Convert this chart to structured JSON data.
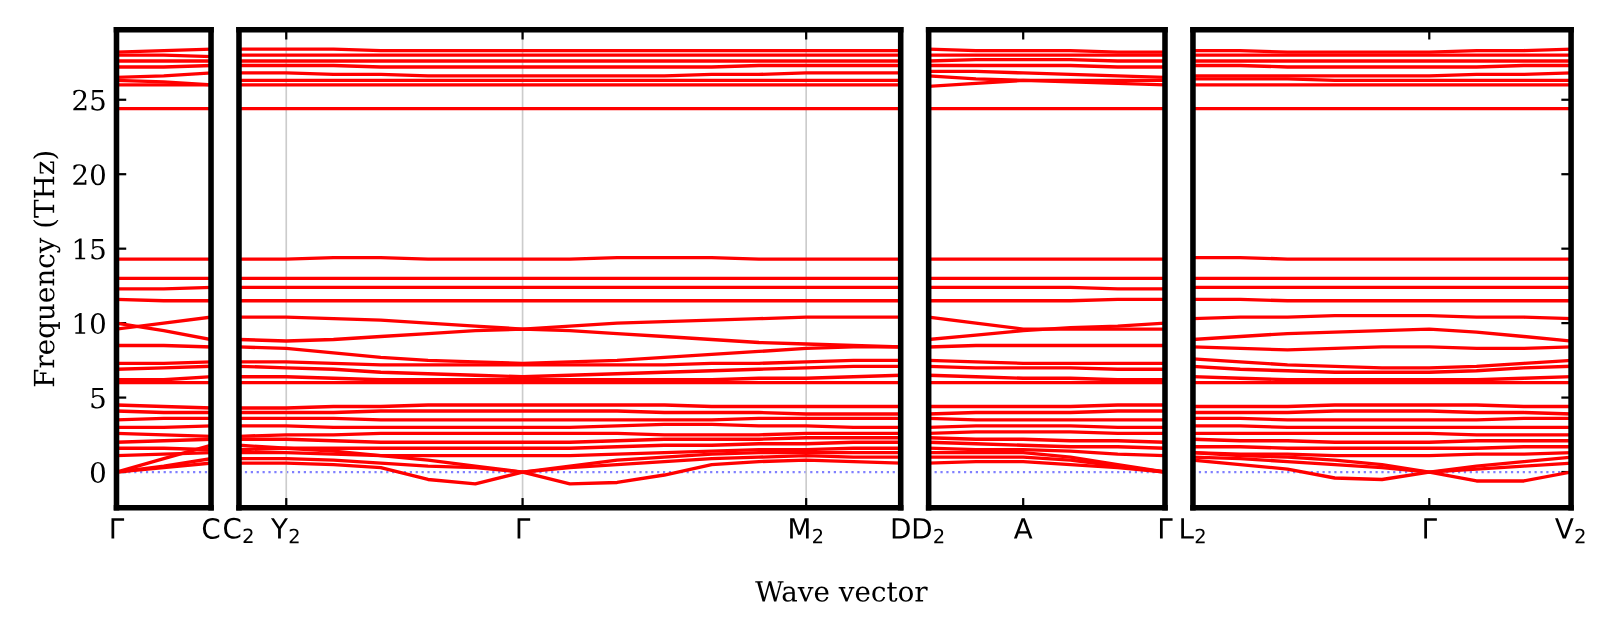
{
  "chart_data": [
    {
      "type": "line",
      "ylabel": "Frequency (THz)",
      "categories": [
        "Γ",
        null,
        "C"
      ],
      "ylim": [
        -2.4,
        29.7
      ],
      "yticks": [
        0,
        5,
        10,
        15,
        20,
        25
      ],
      "marker": "none",
      "line_style": "solid",
      "legend": false,
      "ref_lines": [
        {
          "axis": "y",
          "value": 0,
          "label": null,
          "color": "#8080ff",
          "line_style": "dotted"
        }
      ],
      "series": [
        {
          "color": "#ff0000",
          "values": [
            24.4,
            24.4,
            24.4
          ]
        },
        {
          "color": "#ff0000",
          "values": [
            26.0,
            26.0,
            26.0
          ]
        },
        {
          "color": "#ff0000",
          "values": [
            26.3,
            26.2,
            26.0
          ]
        },
        {
          "color": "#ff0000",
          "values": [
            26.5,
            26.6,
            26.8
          ]
        },
        {
          "color": "#ff0000",
          "values": [
            27.2,
            27.2,
            27.3
          ]
        },
        {
          "color": "#ff0000",
          "values": [
            27.6,
            27.6,
            27.6
          ]
        },
        {
          "color": "#ff0000",
          "values": [
            28.0,
            28.0,
            27.9
          ]
        },
        {
          "color": "#ff0000",
          "values": [
            28.2,
            28.3,
            28.4
          ]
        },
        {
          "color": "#ff0000",
          "values": [
            14.3,
            14.3,
            14.3
          ]
        },
        {
          "color": "#ff0000",
          "values": [
            13.0,
            13.0,
            13.0
          ]
        },
        {
          "color": "#ff0000",
          "values": [
            12.3,
            12.3,
            12.4
          ]
        },
        {
          "color": "#ff0000",
          "values": [
            11.6,
            11.5,
            11.5
          ]
        },
        {
          "color": "#ff0000",
          "values": [
            9.6,
            10.0,
            10.4
          ]
        },
        {
          "color": "#ff0000",
          "values": [
            10.0,
            9.5,
            8.9
          ]
        },
        {
          "color": "#ff0000",
          "values": [
            8.5,
            8.5,
            8.4
          ]
        },
        {
          "color": "#ff0000",
          "values": [
            7.3,
            7.3,
            7.4
          ]
        },
        {
          "color": "#ff0000",
          "values": [
            6.9,
            7.0,
            7.1
          ]
        },
        {
          "color": "#ff0000",
          "values": [
            6.2,
            6.2,
            6.4
          ]
        },
        {
          "color": "#ff0000",
          "values": [
            6.0,
            6.0,
            6.0
          ]
        },
        {
          "color": "#ff0000",
          "values": [
            4.5,
            4.4,
            4.3
          ]
        },
        {
          "color": "#ff0000",
          "values": [
            4.1,
            4.0,
            4.0
          ]
        },
        {
          "color": "#ff0000",
          "values": [
            3.5,
            3.6,
            3.6
          ]
        },
        {
          "color": "#ff0000",
          "values": [
            3.0,
            3.0,
            3.1
          ]
        },
        {
          "color": "#ff0000",
          "values": [
            2.6,
            2.5,
            2.4
          ]
        },
        {
          "color": "#ff0000",
          "values": [
            2.0,
            2.1,
            2.2
          ]
        },
        {
          "color": "#ff0000",
          "values": [
            1.6,
            1.6,
            1.5
          ]
        },
        {
          "color": "#ff0000",
          "values": [
            1.1,
            1.2,
            1.3
          ]
        },
        {
          "color": "#ff0000",
          "values": [
            0,
            0.9,
            1.8
          ]
        },
        {
          "color": "#ff0000",
          "values": [
            0,
            0.4,
            0.9
          ]
        },
        {
          "color": "#ff0000",
          "values": [
            0,
            0.3,
            0.6
          ]
        }
      ]
    },
    {
      "type": "line",
      "xlabel": "Wave vector",
      "categories": [
        "C$_{2}$",
        "Y$_{2}$",
        null,
        null,
        null,
        null,
        "Γ",
        null,
        null,
        null,
        null,
        null,
        "M$_{2}$",
        null,
        "D"
      ],
      "ylim": [
        -2.4,
        29.7
      ],
      "tick_labels": "x",
      "grid": "x",
      "marker": "none",
      "line_style": "solid",
      "legend": false,
      "ref_lines": [
        {
          "axis": "y",
          "value": 0,
          "label": null,
          "color": "#8080ff",
          "line_style": "dotted"
        }
      ],
      "series": [
        {
          "color": "#ff0000",
          "values": [
            24.4,
            24.4,
            24.4,
            24.4,
            24.4,
            24.4,
            24.4,
            24.4,
            24.4,
            24.4,
            24.4,
            24.4,
            24.4,
            24.4,
            24.4
          ]
        },
        {
          "color": "#ff0000",
          "values": [
            26.0,
            26.0,
            26.0,
            26.0,
            26.0,
            26.0,
            26.0,
            26.0,
            26.0,
            26.0,
            26.0,
            26.0,
            26.0,
            26.0,
            26.0
          ]
        },
        {
          "color": "#ff0000",
          "values": [
            26.3,
            26.3,
            26.3,
            26.3,
            26.3,
            26.3,
            26.3,
            26.3,
            26.3,
            26.3,
            26.3,
            26.3,
            26.3,
            26.3,
            26.3
          ]
        },
        {
          "color": "#ff0000",
          "values": [
            26.8,
            26.8,
            26.7,
            26.7,
            26.6,
            26.6,
            26.6,
            26.6,
            26.6,
            26.6,
            26.7,
            26.7,
            26.8,
            26.8,
            26.8
          ]
        },
        {
          "color": "#ff0000",
          "values": [
            27.3,
            27.3,
            27.3,
            27.2,
            27.2,
            27.2,
            27.2,
            27.2,
            27.2,
            27.2,
            27.2,
            27.3,
            27.3,
            27.3,
            27.3
          ]
        },
        {
          "color": "#ff0000",
          "values": [
            27.6,
            27.6,
            27.6,
            27.6,
            27.6,
            27.6,
            27.6,
            27.6,
            27.6,
            27.6,
            27.6,
            27.6,
            27.6,
            27.6,
            27.6
          ]
        },
        {
          "color": "#ff0000",
          "values": [
            28.0,
            28.0,
            28.0,
            28.0,
            28.0,
            28.0,
            28.0,
            28.0,
            28.0,
            28.0,
            28.0,
            28.0,
            28.0,
            28.0,
            28.0
          ]
        },
        {
          "color": "#ff0000",
          "values": [
            28.4,
            28.4,
            28.4,
            28.3,
            28.3,
            28.3,
            28.3,
            28.3,
            28.3,
            28.3,
            28.3,
            28.3,
            28.3,
            28.3,
            28.3
          ]
        },
        {
          "color": "#ff0000",
          "values": [
            14.3,
            14.3,
            14.4,
            14.4,
            14.3,
            14.3,
            14.3,
            14.3,
            14.4,
            14.4,
            14.4,
            14.3,
            14.3,
            14.3,
            14.3
          ]
        },
        {
          "color": "#ff0000",
          "values": [
            13.0,
            13.0,
            13.0,
            13.0,
            13.0,
            13.0,
            13.0,
            13.0,
            13.0,
            13.0,
            13.0,
            13.0,
            13.0,
            13.0,
            13.0
          ]
        },
        {
          "color": "#ff0000",
          "values": [
            12.4,
            12.4,
            12.4,
            12.4,
            12.4,
            12.4,
            12.4,
            12.4,
            12.4,
            12.4,
            12.4,
            12.4,
            12.4,
            12.4,
            12.4
          ]
        },
        {
          "color": "#ff0000",
          "values": [
            11.5,
            11.5,
            11.5,
            11.5,
            11.5,
            11.5,
            11.5,
            11.5,
            11.5,
            11.5,
            11.5,
            11.5,
            11.5,
            11.5,
            11.5
          ]
        },
        {
          "color": "#ff0000",
          "values": [
            10.4,
            10.4,
            10.3,
            10.2,
            10.0,
            9.8,
            9.6,
            9.8,
            10.0,
            10.1,
            10.2,
            10.3,
            10.4,
            10.4,
            10.4
          ]
        },
        {
          "color": "#ff0000",
          "values": [
            8.9,
            8.8,
            8.9,
            9.1,
            9.3,
            9.5,
            9.6,
            9.5,
            9.3,
            9.1,
            8.9,
            8.7,
            8.6,
            8.5,
            8.4
          ]
        },
        {
          "color": "#ff0000",
          "values": [
            8.4,
            8.3,
            8.0,
            7.7,
            7.5,
            7.4,
            7.3,
            7.4,
            7.5,
            7.7,
            7.9,
            8.1,
            8.3,
            8.4,
            8.4
          ]
        },
        {
          "color": "#ff0000",
          "values": [
            7.4,
            7.4,
            7.3,
            7.2,
            7.2,
            7.2,
            7.2,
            7.2,
            7.2,
            7.2,
            7.3,
            7.3,
            7.4,
            7.5,
            7.5
          ]
        },
        {
          "color": "#ff0000",
          "values": [
            7.1,
            7.0,
            6.9,
            6.7,
            6.6,
            6.5,
            6.4,
            6.5,
            6.6,
            6.7,
            6.8,
            6.9,
            7.0,
            7.1,
            7.1
          ]
        },
        {
          "color": "#ff0000",
          "values": [
            6.4,
            6.4,
            6.3,
            6.2,
            6.2,
            6.2,
            6.2,
            6.2,
            6.2,
            6.2,
            6.2,
            6.3,
            6.3,
            6.4,
            6.5
          ]
        },
        {
          "color": "#ff0000",
          "values": [
            6.0,
            6.0,
            6.0,
            6.0,
            6.0,
            6.0,
            6.0,
            6.0,
            6.0,
            6.0,
            6.0,
            6.0,
            6.0,
            6.0,
            6.0
          ]
        },
        {
          "color": "#ff0000",
          "values": [
            4.3,
            4.3,
            4.4,
            4.4,
            4.5,
            4.5,
            4.5,
            4.5,
            4.5,
            4.5,
            4.4,
            4.4,
            4.4,
            4.4,
            4.4
          ]
        },
        {
          "color": "#ff0000",
          "values": [
            4.0,
            4.0,
            4.0,
            4.1,
            4.1,
            4.1,
            4.1,
            4.1,
            4.1,
            4.0,
            4.0,
            4.0,
            3.9,
            3.9,
            3.9
          ]
        },
        {
          "color": "#ff0000",
          "values": [
            3.6,
            3.6,
            3.6,
            3.5,
            3.5,
            3.5,
            3.5,
            3.5,
            3.5,
            3.5,
            3.5,
            3.6,
            3.6,
            3.6,
            3.6
          ]
        },
        {
          "color": "#ff0000",
          "values": [
            3.1,
            3.1,
            3.0,
            3.0,
            3.0,
            3.0,
            3.0,
            3.0,
            3.1,
            3.2,
            3.2,
            3.1,
            3.1,
            3.0,
            3.0
          ]
        },
        {
          "color": "#ff0000",
          "values": [
            2.4,
            2.5,
            2.5,
            2.6,
            2.6,
            2.6,
            2.6,
            2.6,
            2.6,
            2.5,
            2.5,
            2.5,
            2.6,
            2.6,
            2.6
          ]
        },
        {
          "color": "#ff0000",
          "values": [
            2.2,
            2.2,
            2.1,
            2.0,
            2.0,
            2.0,
            2.0,
            2.0,
            2.1,
            2.2,
            2.2,
            2.2,
            2.3,
            2.3,
            2.3
          ]
        },
        {
          "color": "#ff0000",
          "values": [
            1.5,
            1.6,
            1.6,
            1.6,
            1.6,
            1.6,
            1.6,
            1.6,
            1.7,
            1.8,
            1.8,
            1.9,
            1.9,
            2.0,
            2.0
          ]
        },
        {
          "color": "#ff0000",
          "values": [
            1.3,
            1.3,
            1.2,
            1.1,
            1.1,
            1.1,
            1.1,
            1.1,
            1.2,
            1.3,
            1.4,
            1.5,
            1.5,
            1.6,
            1.6
          ]
        },
        {
          "color": "#ff0000",
          "values": [
            1.8,
            1.6,
            1.4,
            1.1,
            0.8,
            0.4,
            0,
            0.4,
            0.8,
            1.0,
            1.2,
            1.3,
            1.3,
            1.3,
            1.3
          ]
        },
        {
          "color": "#ff0000",
          "values": [
            0.9,
            0.9,
            0.8,
            0.6,
            0.4,
            0.3,
            0,
            0.3,
            0.5,
            0.7,
            0.9,
            1.0,
            1.1,
            1.0,
            1.0
          ]
        },
        {
          "color": "#ff0000",
          "values": [
            0.6,
            0.6,
            0.5,
            0.3,
            -0.5,
            -0.8,
            0,
            -0.8,
            -0.7,
            -0.2,
            0.5,
            0.7,
            0.8,
            0.7,
            0.6
          ]
        }
      ]
    },
    {
      "type": "line",
      "categories": [
        "D$_{2}$",
        null,
        "A",
        null,
        null,
        "Γ"
      ],
      "ylim": [
        -2.4,
        29.7
      ],
      "tick_labels": "x",
      "marker": "none",
      "line_style": "solid",
      "legend": false,
      "ref_lines": [
        {
          "axis": "y",
          "value": 0,
          "label": null,
          "color": "#8080ff",
          "line_style": "dotted"
        }
      ],
      "series": [
        {
          "color": "#ff0000",
          "values": [
            24.4,
            24.4,
            24.4,
            24.4,
            24.4,
            24.4
          ]
        },
        {
          "color": "#ff0000",
          "values": [
            25.9,
            26.1,
            26.3,
            26.2,
            26.1,
            26.0
          ]
        },
        {
          "color": "#ff0000",
          "values": [
            26.6,
            26.4,
            26.3,
            26.3,
            26.3,
            26.3
          ]
        },
        {
          "color": "#ff0000",
          "values": [
            26.9,
            26.9,
            26.8,
            26.7,
            26.6,
            26.5
          ]
        },
        {
          "color": "#ff0000",
          "values": [
            27.3,
            27.3,
            27.3,
            27.3,
            27.2,
            27.2
          ]
        },
        {
          "color": "#ff0000",
          "values": [
            27.6,
            27.7,
            27.7,
            27.7,
            27.6,
            27.6
          ]
        },
        {
          "color": "#ff0000",
          "values": [
            28.0,
            28.0,
            28.0,
            28.0,
            28.0,
            28.0
          ]
        },
        {
          "color": "#ff0000",
          "values": [
            28.4,
            28.3,
            28.3,
            28.3,
            28.2,
            28.2
          ]
        },
        {
          "color": "#ff0000",
          "values": [
            14.3,
            14.3,
            14.3,
            14.3,
            14.3,
            14.3
          ]
        },
        {
          "color": "#ff0000",
          "values": [
            13.0,
            13.0,
            13.0,
            13.0,
            13.0,
            13.0
          ]
        },
        {
          "color": "#ff0000",
          "values": [
            12.4,
            12.4,
            12.4,
            12.4,
            12.3,
            12.3
          ]
        },
        {
          "color": "#ff0000",
          "values": [
            11.5,
            11.5,
            11.5,
            11.5,
            11.6,
            11.6
          ]
        },
        {
          "color": "#ff0000",
          "values": [
            10.4,
            10.0,
            9.6,
            9.6,
            9.6,
            9.6
          ]
        },
        {
          "color": "#ff0000",
          "values": [
            8.9,
            9.2,
            9.5,
            9.7,
            9.8,
            10.0
          ]
        },
        {
          "color": "#ff0000",
          "values": [
            8.4,
            8.5,
            8.5,
            8.5,
            8.5,
            8.5
          ]
        },
        {
          "color": "#ff0000",
          "values": [
            7.5,
            7.4,
            7.3,
            7.3,
            7.3,
            7.3
          ]
        },
        {
          "color": "#ff0000",
          "values": [
            7.1,
            7.0,
            7.0,
            7.0,
            6.9,
            6.9
          ]
        },
        {
          "color": "#ff0000",
          "values": [
            6.5,
            6.4,
            6.3,
            6.3,
            6.2,
            6.2
          ]
        },
        {
          "color": "#ff0000",
          "values": [
            6.0,
            6.0,
            6.0,
            6.0,
            6.0,
            6.0
          ]
        },
        {
          "color": "#ff0000",
          "values": [
            4.4,
            4.4,
            4.4,
            4.4,
            4.5,
            4.5
          ]
        },
        {
          "color": "#ff0000",
          "values": [
            3.9,
            4.0,
            4.0,
            4.0,
            4.1,
            4.1
          ]
        },
        {
          "color": "#ff0000",
          "values": [
            3.6,
            3.5,
            3.5,
            3.5,
            3.5,
            3.5
          ]
        },
        {
          "color": "#ff0000",
          "values": [
            3.0,
            3.1,
            3.1,
            3.1,
            3.0,
            3.0
          ]
        },
        {
          "color": "#ff0000",
          "values": [
            2.6,
            2.7,
            2.7,
            2.7,
            2.6,
            2.6
          ]
        },
        {
          "color": "#ff0000",
          "values": [
            2.3,
            2.2,
            2.2,
            2.1,
            2.1,
            2.0
          ]
        },
        {
          "color": "#ff0000",
          "values": [
            2.0,
            1.9,
            1.8,
            1.7,
            1.7,
            1.6
          ]
        },
        {
          "color": "#ff0000",
          "values": [
            1.6,
            1.5,
            1.5,
            1.4,
            1.2,
            1.1
          ]
        },
        {
          "color": "#ff0000",
          "values": [
            1.3,
            1.3,
            1.3,
            1.0,
            0.5,
            0
          ]
        },
        {
          "color": "#ff0000",
          "values": [
            1.0,
            1.0,
            1.0,
            0.8,
            0.4,
            0
          ]
        },
        {
          "color": "#ff0000",
          "values": [
            0.6,
            0.7,
            0.7,
            0.5,
            0.3,
            0
          ]
        }
      ]
    },
    {
      "type": "line",
      "categories": [
        "L$_{2}$",
        null,
        null,
        null,
        null,
        "Γ",
        null,
        null,
        "V$_{2}$"
      ],
      "ylim": [
        -2.4,
        29.7
      ],
      "tick_labels": "x",
      "yticks": [
        0,
        5,
        10,
        15,
        20,
        25
      ],
      "marker": "none",
      "line_style": "solid",
      "legend": false,
      "ref_lines": [
        {
          "axis": "y",
          "value": 0,
          "label": null,
          "color": "#8080ff",
          "line_style": "dotted"
        }
      ],
      "series": [
        {
          "color": "#ff0000",
          "values": [
            24.4,
            24.4,
            24.4,
            24.4,
            24.4,
            24.4,
            24.4,
            24.4,
            24.4
          ]
        },
        {
          "color": "#ff0000",
          "values": [
            26.0,
            26.0,
            26.0,
            26.0,
            26.0,
            26.0,
            26.0,
            26.0,
            26.0
          ]
        },
        {
          "color": "#ff0000",
          "values": [
            26.4,
            26.4,
            26.4,
            26.3,
            26.3,
            26.3,
            26.3,
            26.3,
            26.3
          ]
        },
        {
          "color": "#ff0000",
          "values": [
            26.6,
            26.6,
            26.6,
            26.6,
            26.6,
            26.6,
            26.7,
            26.7,
            26.8
          ]
        },
        {
          "color": "#ff0000",
          "values": [
            27.3,
            27.3,
            27.2,
            27.2,
            27.2,
            27.2,
            27.2,
            27.3,
            27.3
          ]
        },
        {
          "color": "#ff0000",
          "values": [
            27.6,
            27.6,
            27.6,
            27.6,
            27.6,
            27.6,
            27.6,
            27.6,
            27.6
          ]
        },
        {
          "color": "#ff0000",
          "values": [
            28.0,
            28.0,
            28.0,
            28.0,
            28.0,
            28.0,
            28.0,
            28.0,
            28.0
          ]
        },
        {
          "color": "#ff0000",
          "values": [
            28.3,
            28.3,
            28.2,
            28.2,
            28.2,
            28.2,
            28.3,
            28.3,
            28.4
          ]
        },
        {
          "color": "#ff0000",
          "values": [
            14.4,
            14.4,
            14.3,
            14.3,
            14.3,
            14.3,
            14.3,
            14.3,
            14.3
          ]
        },
        {
          "color": "#ff0000",
          "values": [
            13.0,
            13.0,
            13.0,
            13.0,
            13.0,
            13.0,
            13.0,
            13.0,
            13.0
          ]
        },
        {
          "color": "#ff0000",
          "values": [
            12.4,
            12.4,
            12.4,
            12.4,
            12.4,
            12.4,
            12.4,
            12.4,
            12.4
          ]
        },
        {
          "color": "#ff0000",
          "values": [
            11.6,
            11.6,
            11.5,
            11.5,
            11.5,
            11.5,
            11.5,
            11.5,
            11.5
          ]
        },
        {
          "color": "#ff0000",
          "values": [
            10.3,
            10.4,
            10.4,
            10.5,
            10.5,
            10.5,
            10.4,
            10.4,
            10.3
          ]
        },
        {
          "color": "#ff0000",
          "values": [
            8.9,
            9.1,
            9.3,
            9.4,
            9.5,
            9.6,
            9.4,
            9.1,
            8.8
          ]
        },
        {
          "color": "#ff0000",
          "values": [
            8.4,
            8.3,
            8.2,
            8.3,
            8.4,
            8.4,
            8.3,
            8.3,
            8.4
          ]
        },
        {
          "color": "#ff0000",
          "values": [
            7.6,
            7.4,
            7.2,
            7.1,
            7.0,
            7.0,
            7.1,
            7.3,
            7.5
          ]
        },
        {
          "color": "#ff0000",
          "values": [
            7.1,
            6.9,
            6.8,
            6.7,
            6.7,
            6.7,
            6.8,
            7.0,
            7.1
          ]
        },
        {
          "color": "#ff0000",
          "values": [
            6.4,
            6.3,
            6.2,
            6.2,
            6.2,
            6.2,
            6.2,
            6.3,
            6.4
          ]
        },
        {
          "color": "#ff0000",
          "values": [
            6.0,
            6.0,
            6.0,
            6.0,
            6.0,
            6.0,
            6.0,
            6.0,
            6.0
          ]
        },
        {
          "color": "#ff0000",
          "values": [
            4.4,
            4.4,
            4.4,
            4.5,
            4.5,
            4.5,
            4.5,
            4.4,
            4.4
          ]
        },
        {
          "color": "#ff0000",
          "values": [
            4.0,
            4.0,
            4.0,
            4.1,
            4.1,
            4.1,
            4.0,
            4.0,
            3.9
          ]
        },
        {
          "color": "#ff0000",
          "values": [
            3.6,
            3.6,
            3.5,
            3.5,
            3.5,
            3.5,
            3.5,
            3.6,
            3.6
          ]
        },
        {
          "color": "#ff0000",
          "values": [
            3.1,
            3.1,
            3.0,
            3.0,
            3.0,
            3.0,
            3.0,
            3.0,
            3.0
          ]
        },
        {
          "color": "#ff0000",
          "values": [
            2.6,
            2.6,
            2.6,
            2.6,
            2.6,
            2.6,
            2.5,
            2.5,
            2.5
          ]
        },
        {
          "color": "#ff0000",
          "values": [
            2.2,
            2.1,
            2.1,
            2.0,
            2.0,
            2.0,
            2.1,
            2.1,
            2.1
          ]
        },
        {
          "color": "#ff0000",
          "values": [
            1.7,
            1.7,
            1.6,
            1.6,
            1.6,
            1.6,
            1.6,
            1.7,
            1.7
          ]
        },
        {
          "color": "#ff0000",
          "values": [
            1.3,
            1.2,
            1.2,
            1.1,
            1.1,
            1.1,
            1.2,
            1.2,
            1.3
          ]
        },
        {
          "color": "#ff0000",
          "values": [
            1.3,
            1.1,
            1.0,
            0.8,
            0.5,
            0,
            0.4,
            0.7,
            1.0
          ]
        },
        {
          "color": "#ff0000",
          "values": [
            1.0,
            0.9,
            0.7,
            0.5,
            0.3,
            0,
            0.2,
            0.4,
            0.6
          ]
        },
        {
          "color": "#ff0000",
          "values": [
            0.8,
            0.5,
            0.2,
            -0.4,
            -0.5,
            0,
            -0.6,
            -0.6,
            0
          ]
        }
      ]
    }
  ]
}
